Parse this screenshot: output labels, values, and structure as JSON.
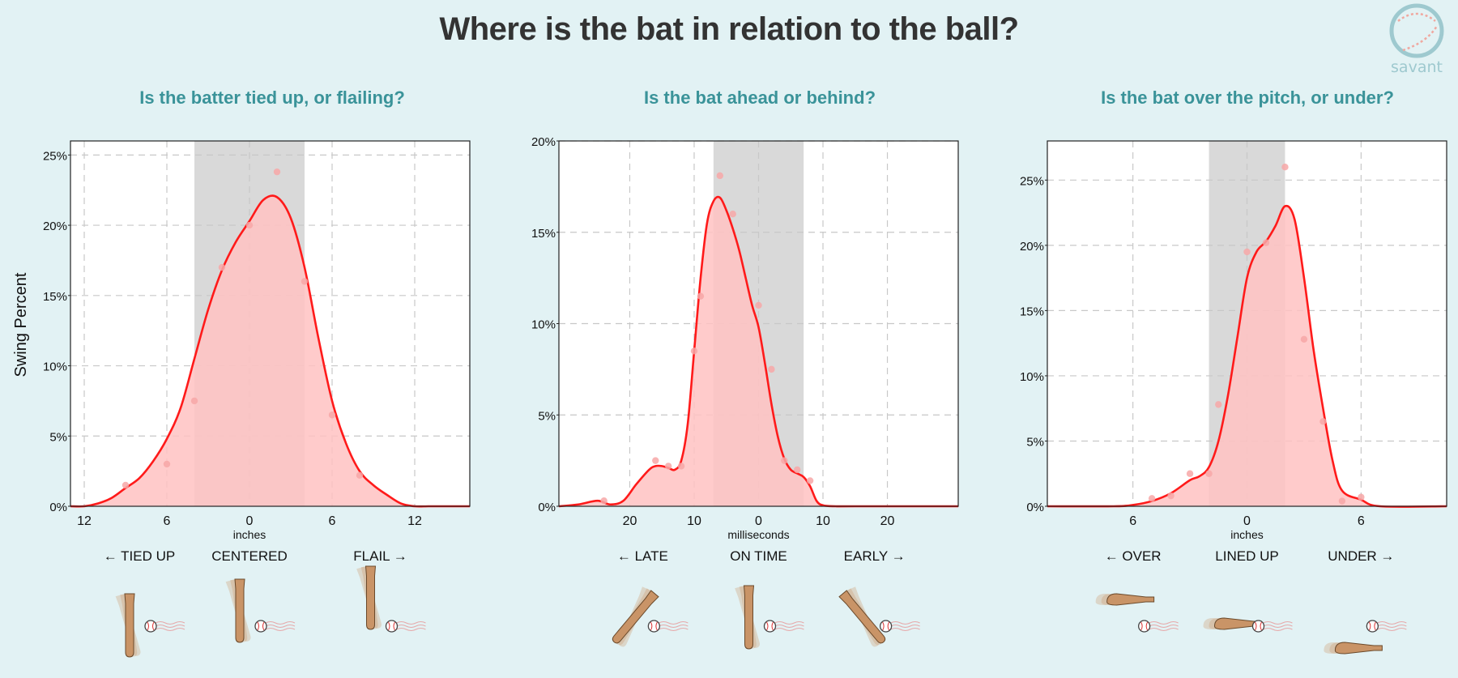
{
  "title": "Where is the bat in relation to the ball?",
  "logo_text": "savant",
  "y_axis_label": "Swing Percent",
  "colors": {
    "background": "#e2f2f4",
    "panel_title": "#3a9399",
    "curve": "#ff1a1a",
    "fill": "#ffc2c2",
    "band": "#d9d9d9",
    "dots": "#f7a7a7",
    "bat": "#c99467"
  },
  "chart_data": [
    {
      "type": "area",
      "panel_title": "Is the batter tied up, or flailing?",
      "xlabel": "inches",
      "ylabel": "Swing Percent",
      "xlim": [
        -13,
        16
      ],
      "ylim": [
        0,
        26
      ],
      "x_ticks": [
        -12,
        -6,
        0,
        6,
        12
      ],
      "x_tick_labels": [
        "12",
        "6",
        "0",
        "6",
        "12"
      ],
      "y_ticks": [
        0,
        5,
        10,
        15,
        20,
        25
      ],
      "y_tick_labels": [
        "0%",
        "5%",
        "10%",
        "15%",
        "20%",
        "25%"
      ],
      "band": [
        -4,
        4
      ],
      "curve": {
        "x": [
          -13,
          -12,
          -11,
          -10,
          -9,
          -8,
          -7,
          -6,
          -5,
          -4,
          -3,
          -2,
          -1,
          0,
          1,
          2,
          3,
          4,
          5,
          6,
          7,
          8,
          9,
          10,
          11,
          12,
          13,
          14,
          15,
          16
        ],
        "y": [
          0,
          0,
          0.2,
          0.6,
          1.3,
          2.0,
          3.2,
          4.8,
          7.0,
          10.5,
          14.0,
          16.8,
          18.8,
          20.3,
          21.8,
          22.0,
          20.5,
          17.0,
          12.0,
          7.5,
          4.5,
          2.5,
          1.5,
          0.8,
          0.2,
          0,
          0,
          0,
          0,
          0
        ]
      },
      "points": {
        "x": [
          -9,
          -6,
          -4,
          -2,
          0,
          2,
          4,
          6,
          8
        ],
        "y": [
          1.5,
          3.0,
          7.5,
          17.0,
          20.0,
          23.8,
          16.0,
          6.5,
          2.2
        ]
      },
      "categories": [
        "← TIED UP",
        "CENTERED",
        "FLAIL →"
      ],
      "category_x": [
        -8,
        0,
        9.5
      ]
    },
    {
      "type": "area",
      "panel_title": "Is the bat ahead or behind?",
      "xlabel": "milliseconds",
      "ylabel": "Swing Percent",
      "xlim": [
        -31,
        31
      ],
      "ylim": [
        0,
        20
      ],
      "x_ticks": [
        -20,
        -10,
        0,
        10,
        20
      ],
      "x_tick_labels": [
        "20",
        "10",
        "0",
        "10",
        "20"
      ],
      "y_ticks": [
        0,
        5,
        10,
        15,
        20
      ],
      "y_tick_labels": [
        "0%",
        "5%",
        "10%",
        "15%",
        "20%"
      ],
      "band": [
        -7,
        7
      ],
      "curve": {
        "x": [
          -31,
          -28,
          -25,
          -23,
          -21,
          -19,
          -17,
          -16,
          -15,
          -14,
          -13,
          -12,
          -11,
          -10,
          -9,
          -8,
          -7,
          -6,
          -5,
          -4,
          -3,
          -2,
          -1,
          0,
          1,
          2,
          3,
          4,
          5,
          6,
          7,
          8,
          9,
          10,
          12,
          15,
          31
        ],
        "y": [
          0,
          0.1,
          0.3,
          0.1,
          0.3,
          1.2,
          2.0,
          2.2,
          2.2,
          2.1,
          2.0,
          2.5,
          4.5,
          8.5,
          12.5,
          15.5,
          16.7,
          16.9,
          16.2,
          15.2,
          14.0,
          12.5,
          11.0,
          9.8,
          7.8,
          5.6,
          3.8,
          2.6,
          2.0,
          1.8,
          1.6,
          1.1,
          0.3,
          0.05,
          0,
          0,
          0
        ]
      },
      "points": {
        "x": [
          -24,
          -16,
          -14,
          -12,
          -10,
          -9,
          -6,
          -4,
          0,
          2,
          4,
          6,
          8
        ],
        "y": [
          0.3,
          2.5,
          2.2,
          2.2,
          8.5,
          11.5,
          18.1,
          16.0,
          11.0,
          7.5,
          2.5,
          2.0,
          1.4
        ]
      },
      "categories": [
        "← LATE",
        "ON TIME",
        "EARLY →"
      ],
      "category_x": [
        -18,
        0,
        18
      ]
    },
    {
      "type": "area",
      "panel_title": "Is the bat over the pitch, or under?",
      "xlabel": "inches",
      "ylabel": "Swing Percent",
      "xlim": [
        -10.5,
        10.5
      ],
      "ylim": [
        0,
        28
      ],
      "x_ticks": [
        -6,
        0,
        6
      ],
      "x_tick_labels": [
        "6",
        "0",
        "6"
      ],
      "y_ticks": [
        0,
        5,
        10,
        15,
        20,
        25
      ],
      "y_tick_labels": [
        "0%",
        "5%",
        "10%",
        "15%",
        "20%",
        "25%"
      ],
      "band": [
        -2,
        2
      ],
      "curve": {
        "x": [
          -10.5,
          -7,
          -6,
          -5,
          -4,
          -3,
          -2.5,
          -2,
          -1.5,
          -1,
          -0.5,
          0,
          0.5,
          1,
          1.5,
          2,
          2.5,
          3,
          3.5,
          4,
          4.5,
          5,
          6,
          7,
          10.5
        ],
        "y": [
          0,
          0,
          0.1,
          0.4,
          1.0,
          2.0,
          2.3,
          3.0,
          5.0,
          8.5,
          13.0,
          17.5,
          19.5,
          20.3,
          21.5,
          23.0,
          22.0,
          17.5,
          12.0,
          7.5,
          3.5,
          1.2,
          0.5,
          0,
          0
        ]
      },
      "points": {
        "x": [
          -5,
          -4,
          -3,
          -2,
          -1.5,
          0,
          1,
          2,
          3,
          4,
          5,
          6
        ],
        "y": [
          0.6,
          0.8,
          2.5,
          2.5,
          7.8,
          19.5,
          20.2,
          26.0,
          12.8,
          6.5,
          0.4,
          0.7
        ]
      },
      "categories": [
        "← OVER",
        "LINED UP",
        "UNDER →"
      ],
      "category_x": [
        -6,
        0,
        6
      ]
    }
  ]
}
